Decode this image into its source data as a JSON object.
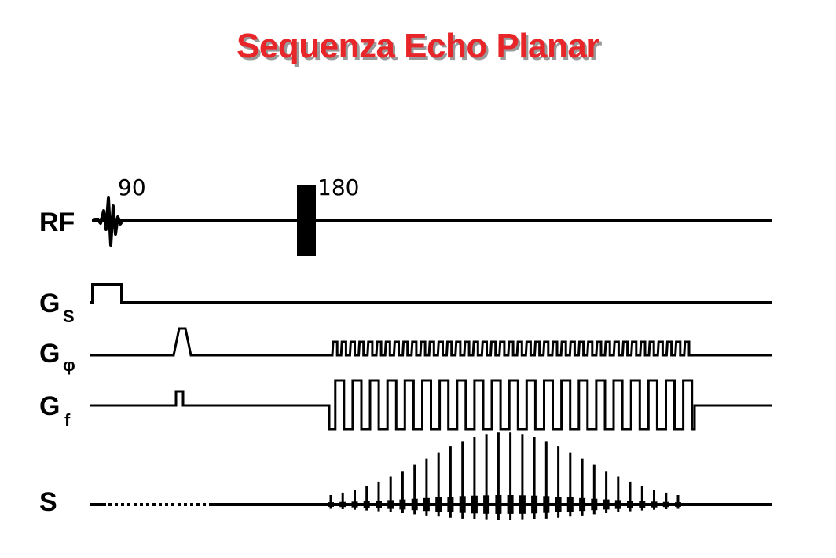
{
  "title": "Sequenza Echo Planar",
  "colors": {
    "title": "#e8262a",
    "line": "#000000",
    "background": "#ffffff"
  },
  "labels": {
    "rf": "RF",
    "gs_main": "G",
    "gs_sub": "S",
    "gphi_main": "G",
    "gphi_sub": "φ",
    "gf_main": "G",
    "gf_sub": "f",
    "s": "S"
  },
  "annotations": {
    "pulse_90": "90",
    "pulse_180": "180"
  },
  "sequence": {
    "phase_blips": 41,
    "readout_lobes": 21,
    "echo_count": 30
  }
}
